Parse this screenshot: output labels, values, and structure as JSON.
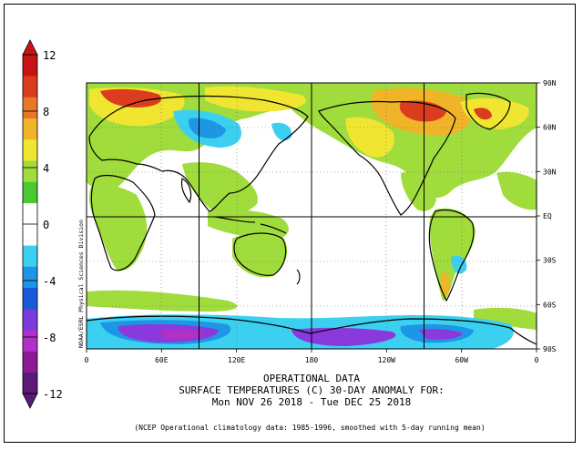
{
  "colorbar": {
    "ticks": [
      "12",
      "8",
      "4",
      "0",
      "-4",
      "-8",
      "-12"
    ],
    "colors": [
      "#5a1a78",
      "#8a1a96",
      "#b030c8",
      "#7a3adc",
      "#1a5ad8",
      "#1e96e6",
      "#3cd0f0",
      "#ffffff",
      "#ffffff",
      "#4cc832",
      "#a0dc3c",
      "#f0e632",
      "#f0b428",
      "#e67828",
      "#dc3c1e",
      "#c81414"
    ]
  },
  "map": {
    "lat_labels": [
      "90N",
      "60N",
      "30N",
      "EQ",
      "30S",
      "60S",
      "90S"
    ],
    "lon_labels": [
      "0",
      "60E",
      "120E",
      "180",
      "120W",
      "60W",
      "0"
    ],
    "credit": "NOAA/ESRL Physical Sciences Division"
  },
  "caption": {
    "line1": "OPERATIONAL DATA",
    "line2": "SURFACE TEMPERATURES (C)   30-DAY ANOMALY FOR:",
    "line3": "Mon NOV 26 2018 - Tue DEC 25 2018",
    "note": "(NCEP Operational climatology data: 1985-1996, smoothed with 5-day running mean)"
  },
  "palette": {
    "red": "#dc3c1e",
    "dark_red": "#c81414",
    "orange": "#f0b428",
    "yellow": "#f0e632",
    "green": "#a0dc3c",
    "bright_green": "#4cc832",
    "cyan": "#3cd0f0",
    "blue": "#1e96e6",
    "purple": "#8a3adc",
    "violet": "#b030c8"
  }
}
